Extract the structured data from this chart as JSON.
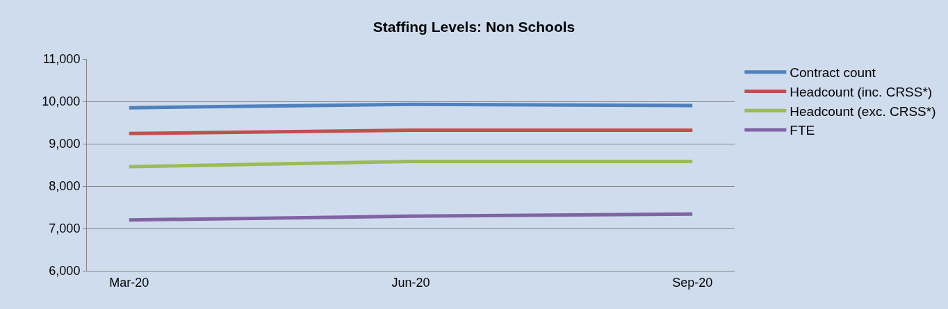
{
  "chart_data": {
    "type": "line",
    "title": "Staffing Levels: Non Schools",
    "categories": [
      "Mar-20",
      "Jun-20",
      "Sep-20"
    ],
    "series": [
      {
        "name": "Contract count",
        "color": "#4f81bd",
        "values": [
          9850,
          9930,
          9900
        ]
      },
      {
        "name": "Headcount (inc. CRSS*)",
        "color": "#c0504d",
        "values": [
          9240,
          9320,
          9320
        ]
      },
      {
        "name": "Headcount (exc. CRSS*)",
        "color": "#9bbb59",
        "values": [
          8460,
          8580,
          8580
        ]
      },
      {
        "name": "FTE",
        "color": "#8064a2",
        "values": [
          7200,
          7290,
          7340
        ]
      }
    ],
    "ylim": [
      6000,
      11000
    ],
    "yticks": [
      {
        "value": 6000,
        "label": "6,000"
      },
      {
        "value": 7000,
        "label": "7,000"
      },
      {
        "value": 8000,
        "label": "8,000"
      },
      {
        "value": 9000,
        "label": "9,000"
      },
      {
        "value": 10000,
        "label": "10,000"
      },
      {
        "value": 11000,
        "label": "11,000"
      }
    ],
    "grid": "y",
    "legend": "right",
    "marker": "none",
    "line_style": "solid"
  }
}
